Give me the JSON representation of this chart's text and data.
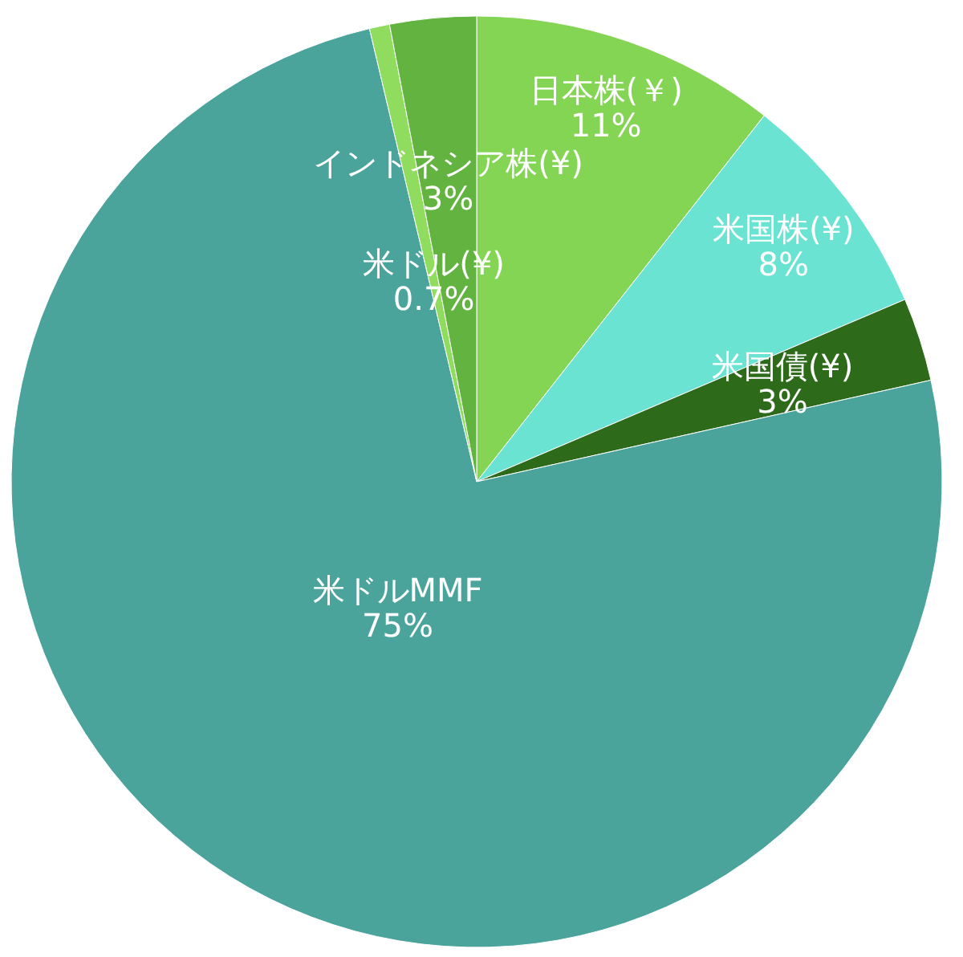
{
  "chart_data": {
    "type": "pie",
    "categories": [
      "日本株(￥)",
      "米国株(¥)",
      "米国債(¥)",
      "米ドルMMF",
      "米ドル(¥)",
      "インドネシア株(¥)"
    ],
    "values": [
      10.6,
      8,
      2.9,
      74.8,
      0.7,
      3
    ],
    "value_labels": [
      "11%",
      "8%",
      "3%",
      "75%",
      "0.7%",
      "3%"
    ],
    "colors": [
      "#83d553",
      "#6be3d3",
      "#2d6a1a",
      "#4aa49c",
      "#8fdc5e",
      "#62b33f"
    ]
  }
}
